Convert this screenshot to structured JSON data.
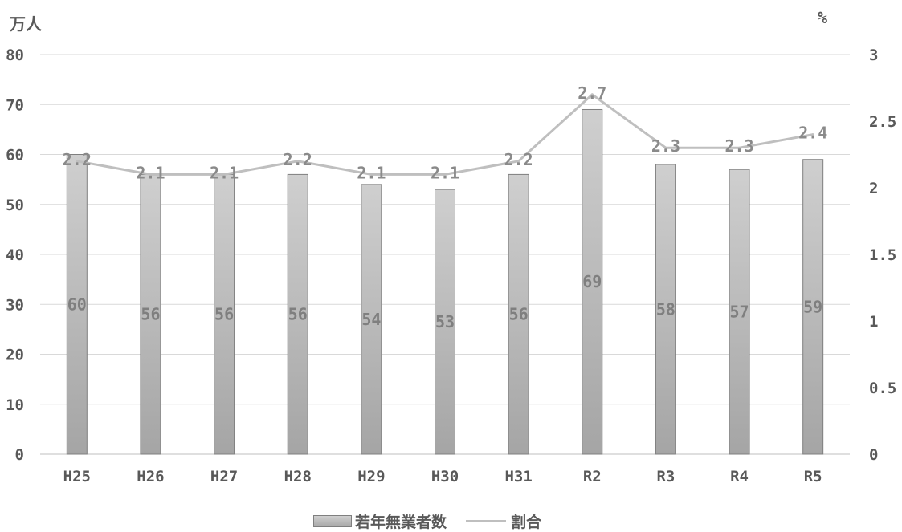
{
  "units": {
    "left": "万人",
    "right": "%"
  },
  "legend": {
    "bars_label": "若年無業者数",
    "line_label": "割合"
  },
  "colors": {
    "bar_top": "#cfcfcf",
    "bar_bottom": "#a5a5a5",
    "bar_stroke": "#7f7f7f",
    "line": "#bfbfbf",
    "grid": "#d9d9d9",
    "text": "#595959"
  },
  "chart_data": {
    "type": "bar",
    "categories": [
      "H25",
      "H26",
      "H27",
      "H28",
      "H29",
      "H30",
      "H31",
      "R2",
      "R3",
      "R4",
      "R5"
    ],
    "series": [
      {
        "name": "若年無業者数",
        "type": "bar",
        "axis": "left",
        "values": [
          60,
          56,
          56,
          56,
          54,
          53,
          56,
          69,
          58,
          57,
          59
        ]
      },
      {
        "name": "割合",
        "type": "line",
        "axis": "right",
        "values": [
          2.2,
          2.1,
          2.1,
          2.2,
          2.1,
          2.1,
          2.2,
          2.7,
          2.3,
          2.3,
          2.4
        ]
      }
    ],
    "y_left": {
      "min": 0,
      "max": 80,
      "step": 10,
      "ticks": [
        "0",
        "10",
        "20",
        "30",
        "40",
        "50",
        "60",
        "70",
        "80"
      ]
    },
    "y_right": {
      "min": 0,
      "max": 3,
      "step": 0.5,
      "ticks": [
        "0",
        "0.5",
        "1",
        "1.5",
        "2",
        "2.5",
        "3"
      ]
    },
    "grid": true,
    "legend_position": "bottom"
  }
}
